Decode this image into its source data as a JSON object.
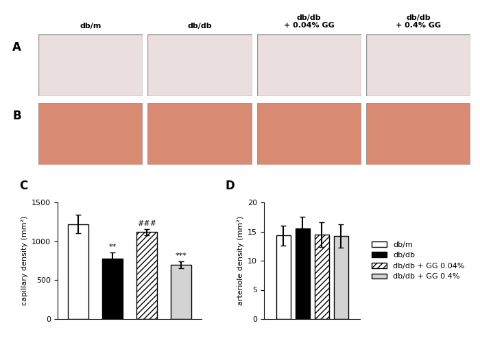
{
  "image_panels": {
    "rows": [
      "A",
      "B"
    ],
    "columns": [
      "db/m",
      "db/db",
      "db/db\n+ 0.04% GG",
      "db/db\n+ 0.4% GG"
    ]
  },
  "chart_data": [
    {
      "panel": "C",
      "type": "bar",
      "y_label": "capillary density (mm²)",
      "categories": [
        null,
        null,
        null,
        null
      ],
      "values": [
        1220,
        780,
        1120,
        700
      ],
      "errors": [
        120,
        75,
        40,
        45
      ],
      "colors": [
        "#ffffff",
        "#000000",
        "#ffffff",
        "#d3d3d3"
      ],
      "significance": [
        null,
        "**",
        "###",
        "***"
      ],
      "ylim": [
        0,
        1500
      ],
      "yticks": [
        0,
        500,
        1000,
        1500
      ],
      "tick_labels": "y"
    },
    {
      "panel": "D",
      "type": "bar",
      "y_label": "arteriole density (mm²)",
      "categories": [
        null
      ],
      "series": [
        {
          "name": "db/m",
          "color": "#ffffff",
          "values": [
            14.3
          ],
          "errors": [
            1.7
          ]
        },
        {
          "name": "db/db",
          "color": "#000000",
          "values": [
            15.5
          ],
          "errors": [
            2.0
          ]
        },
        {
          "name": "db/db + GG 0.04%",
          "color": "#ffffff",
          "values": [
            14.5
          ],
          "errors": [
            2.1
          ]
        },
        {
          "name": "db/db + GG 0.4%",
          "color": "#d3d3d3",
          "values": [
            14.2
          ],
          "errors": [
            2.0
          ]
        }
      ],
      "ylim": [
        0,
        20
      ],
      "yticks": [
        0,
        5,
        10,
        15,
        20
      ],
      "tick_labels": "y",
      "legend": "right"
    }
  ]
}
